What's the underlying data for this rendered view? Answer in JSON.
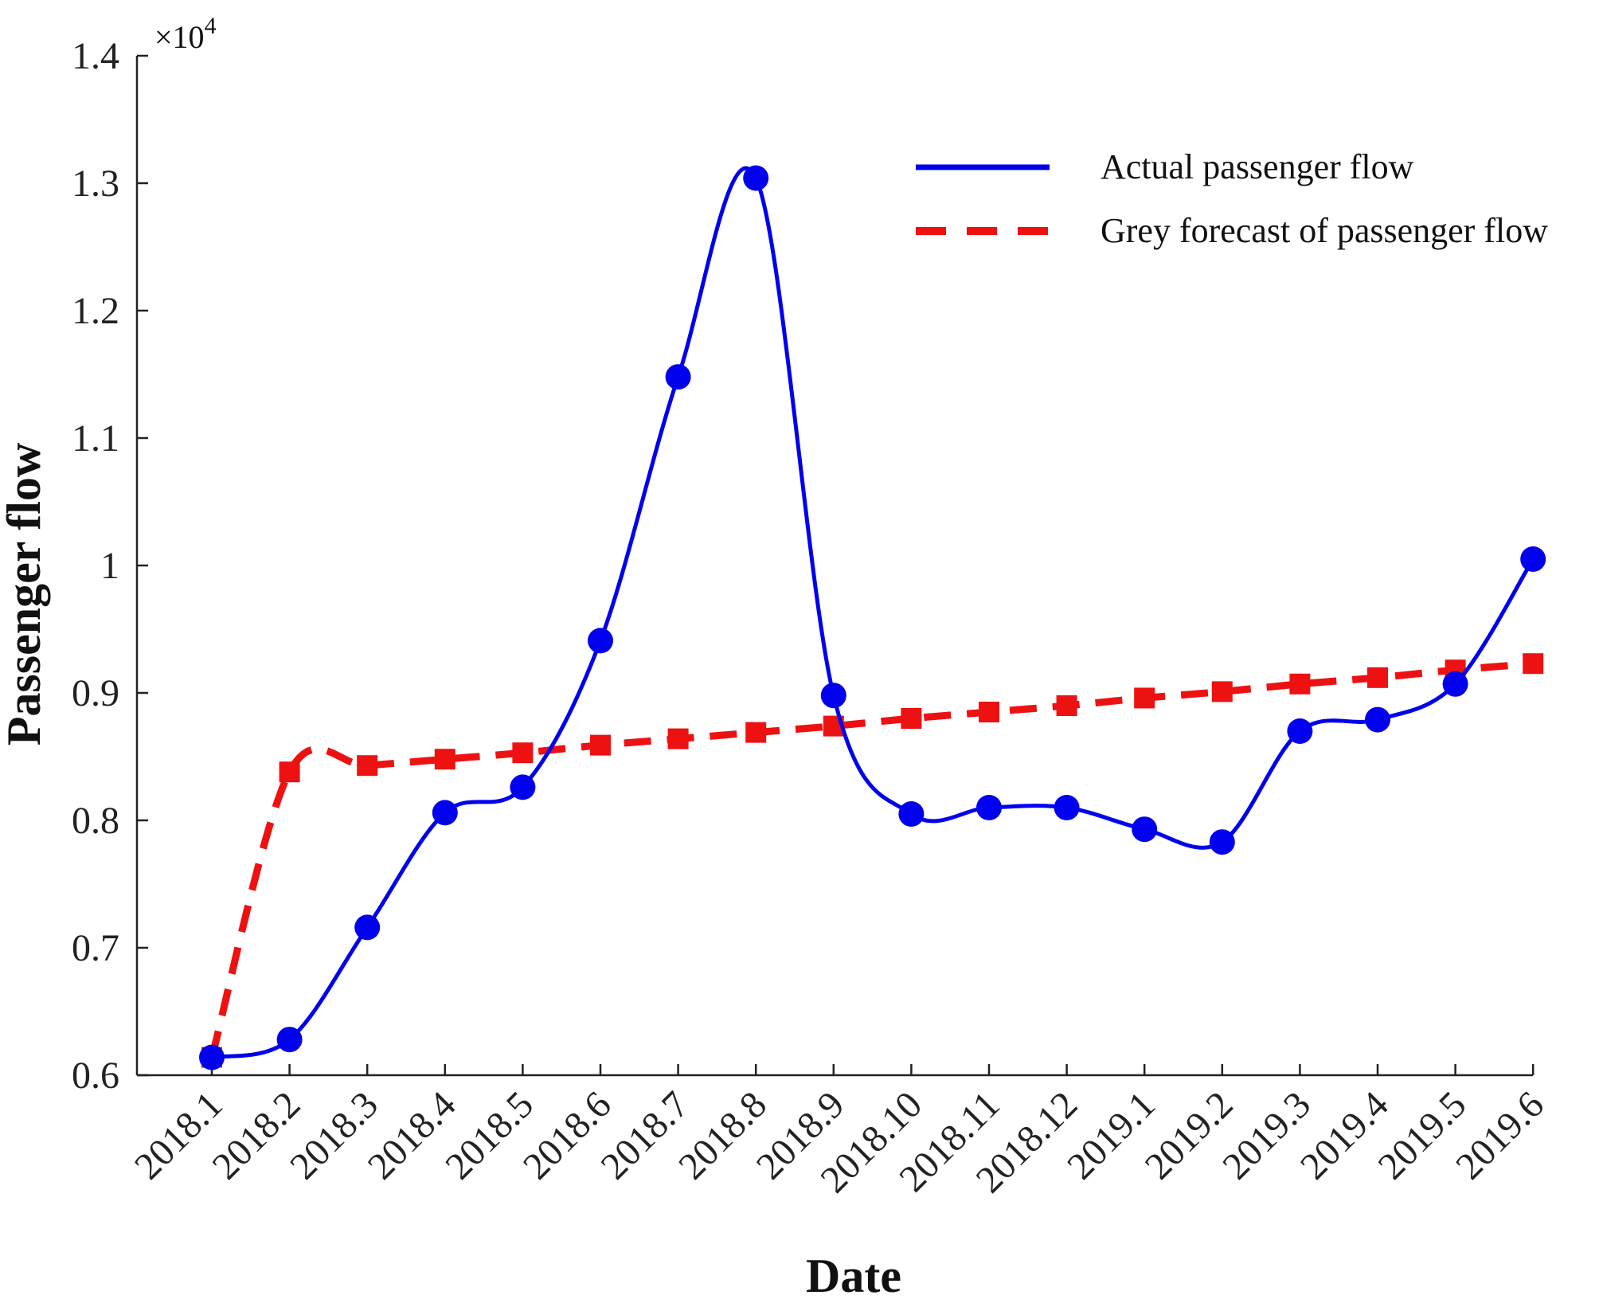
{
  "chart_data": {
    "type": "line",
    "title": "",
    "xlabel": "Date",
    "ylabel": "Passenger flow",
    "y_multiplier_text": "×10",
    "y_multiplier_exp": "4",
    "categories": [
      "2018.1",
      "2018.2",
      "2018.3",
      "2018.4",
      "2018.5",
      "2018.6",
      "2018.7",
      "2018.8",
      "2018.9",
      "2018.10",
      "2018.11",
      "2018.12",
      "2019.1",
      "2019.2",
      "2019.3",
      "2019.4",
      "2019.5",
      "2019.6"
    ],
    "ylim": [
      0.6,
      1.4
    ],
    "yticks": [
      0.6,
      0.7,
      0.8,
      0.9,
      1.0,
      1.1,
      1.2,
      1.3,
      1.4
    ],
    "ytick_labels": [
      "0.6",
      "0.7",
      "0.8",
      "0.9",
      "1",
      "1.1",
      "1.2",
      "1.3",
      "1.4"
    ],
    "grid": false,
    "legend_position": "top-right",
    "series": [
      {
        "name": "Actual passenger flow",
        "color": "#0000ee",
        "line_style": "solid",
        "marker": "circle",
        "values": [
          0.614,
          0.628,
          0.716,
          0.806,
          0.826,
          0.941,
          1.148,
          1.304,
          0.898,
          0.805,
          0.81,
          0.81,
          0.793,
          0.783,
          0.87,
          0.879,
          0.907,
          1.005
        ]
      },
      {
        "name": "Grey forecast of passenger flow",
        "color": "#ee1111",
        "line_style": "dashed",
        "marker": "square",
        "values": [
          0.614,
          0.838,
          0.843,
          0.848,
          0.853,
          0.859,
          0.864,
          0.869,
          0.874,
          0.88,
          0.885,
          0.89,
          0.896,
          0.901,
          0.907,
          0.912,
          0.918,
          0.923
        ]
      }
    ]
  }
}
